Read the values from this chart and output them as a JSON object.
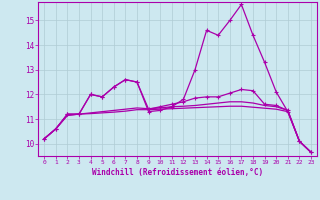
{
  "xlabel": "Windchill (Refroidissement éolien,°C)",
  "xlim": [
    -0.5,
    23.5
  ],
  "ylim": [
    9.5,
    15.75
  ],
  "xticks": [
    0,
    1,
    2,
    3,
    4,
    5,
    6,
    7,
    8,
    9,
    10,
    11,
    12,
    13,
    14,
    15,
    16,
    17,
    18,
    19,
    20,
    21,
    22,
    23
  ],
  "yticks": [
    10,
    11,
    12,
    13,
    14,
    15
  ],
  "bg_color": "#cde8f0",
  "line_color": "#aa00aa",
  "grid_color": "#b0ccd4",
  "line1": [
    10.2,
    10.6,
    11.2,
    11.2,
    12.0,
    11.9,
    12.3,
    12.6,
    12.5,
    11.3,
    11.35,
    11.5,
    11.8,
    13.0,
    14.6,
    14.4,
    15.0,
    15.65,
    14.4,
    13.3,
    12.1,
    11.3,
    10.1,
    9.65
  ],
  "line2": [
    10.2,
    10.6,
    11.2,
    11.2,
    12.0,
    11.9,
    12.3,
    12.6,
    12.5,
    11.4,
    11.5,
    11.6,
    11.7,
    11.85,
    11.9,
    11.9,
    12.05,
    12.2,
    12.15,
    11.6,
    11.55,
    11.35,
    10.1,
    9.65
  ],
  "line3": [
    10.2,
    10.6,
    11.15,
    11.2,
    11.25,
    11.3,
    11.35,
    11.4,
    11.45,
    11.42,
    11.45,
    11.5,
    11.52,
    11.55,
    11.6,
    11.65,
    11.7,
    11.7,
    11.65,
    11.55,
    11.5,
    11.35,
    10.1,
    9.65
  ],
  "line4": [
    10.2,
    10.6,
    11.15,
    11.2,
    11.22,
    11.25,
    11.28,
    11.32,
    11.38,
    11.38,
    11.4,
    11.42,
    11.44,
    11.46,
    11.48,
    11.5,
    11.52,
    11.52,
    11.48,
    11.44,
    11.4,
    11.3,
    10.1,
    9.65
  ]
}
